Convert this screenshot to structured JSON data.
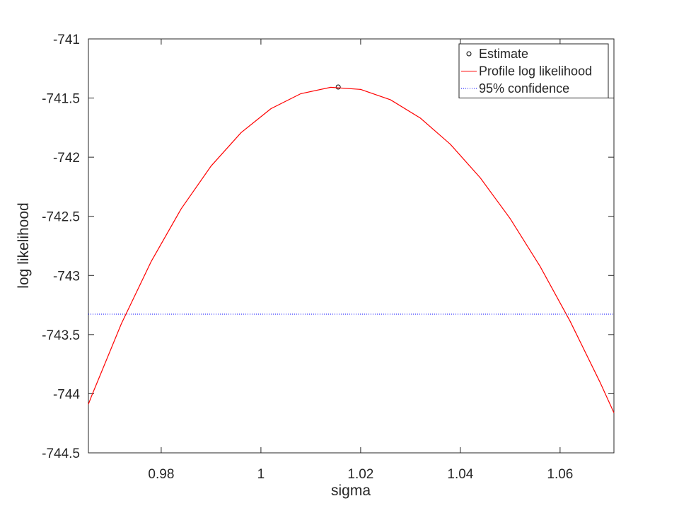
{
  "chart_data": {
    "type": "line",
    "xlabel": "sigma",
    "ylabel": "log likelihood",
    "xlim": [
      0.9654,
      1.0708
    ],
    "ylim": [
      -744.5,
      -741
    ],
    "xticks": [
      0.98,
      1,
      1.02,
      1.04,
      1.06
    ],
    "yticks": [
      -744.5,
      -744,
      -743.5,
      -743,
      -742.5,
      -742,
      -741.5,
      -741
    ],
    "grid": false,
    "legend": "upper-right",
    "series": [
      {
        "name": "Estimate",
        "type": "scatter",
        "color": "#000000",
        "x": [
          1.0155
        ],
        "values": [
          -741.407
        ]
      },
      {
        "name": "Profile log likelihood",
        "type": "line",
        "color": "#ff0000",
        "x": [
          0.9654,
          0.966,
          0.972,
          0.978,
          0.984,
          0.99,
          0.996,
          1.002,
          1.008,
          1.014,
          1.02,
          1.026,
          1.032,
          1.038,
          1.044,
          1.05,
          1.056,
          1.062,
          1.068,
          1.0708
        ],
        "values": [
          -744.089,
          -744.023,
          -743.409,
          -742.881,
          -742.437,
          -742.075,
          -741.793,
          -741.59,
          -741.463,
          -741.409,
          -741.427,
          -741.515,
          -741.67,
          -741.891,
          -742.175,
          -742.52,
          -742.924,
          -743.386,
          -743.902,
          -744.161
        ]
      },
      {
        "name": "95% confidence",
        "type": "line",
        "style": "dotted",
        "color": "#0000ff",
        "x": [
          0.9654,
          1.0708
        ],
        "values": [
          -743.327,
          -743.327
        ]
      }
    ]
  }
}
